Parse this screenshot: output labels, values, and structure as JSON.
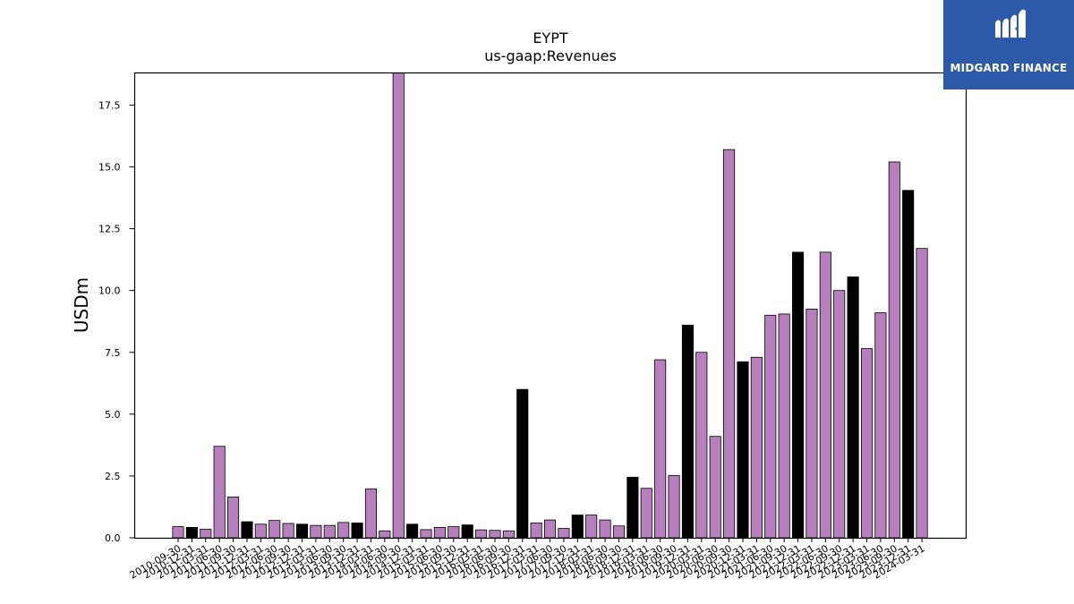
{
  "chart_data": {
    "type": "bar",
    "title": "EYPT",
    "subtitle": "us-gaap:Revenues",
    "xlabel": "",
    "ylabel": "USDm",
    "ylim": [
      0,
      18.8
    ],
    "yticks": [
      "0.0",
      "2.5",
      "5.0",
      "7.5",
      "10.0",
      "12.5",
      "15.0",
      "17.5"
    ],
    "colors": {
      "quarter": "#b77fbd",
      "annual": "#000000",
      "edge": "#000000"
    },
    "categories": [
      "2010-09-30",
      "2010-12-31",
      "2011-03-31",
      "2011-06-30",
      "2011-09-30",
      "2011-12-31",
      "2012-03-31",
      "2012-06-30",
      "2012-09-30",
      "2012-12-31",
      "2013-03-31",
      "2013-06-30",
      "2013-09-30",
      "2013-12-31",
      "2014-03-31",
      "2014-06-30",
      "2014-09-30",
      "2014-12-31",
      "2015-03-31",
      "2015-06-30",
      "2015-09-30",
      "2015-12-31",
      "2016-03-31",
      "2016-06-30",
      "2016-09-30",
      "2016-12-31",
      "2017-03-31",
      "2017-06-30",
      "2017-09-30",
      "2017-12-31",
      "2018-03-31",
      "2018-06-30",
      "2018-09-30",
      "2018-12-31",
      "2019-03-31",
      "2019-06-30",
      "2019-09-30",
      "2019-12-31",
      "2020-03-31",
      "2020-06-30",
      "2020-09-30",
      "2020-12-31",
      "2021-03-31",
      "2021-06-30",
      "2021-09-30",
      "2021-12-31",
      "2022-03-31",
      "2022-06-30",
      "2022-09-30",
      "2022-12-31",
      "2023-03-31",
      "2023-06-30",
      "2023-09-30",
      "2023-12-31",
      "2024-03-31"
    ],
    "values": [
      0.45,
      0.42,
      0.35,
      3.7,
      1.65,
      0.65,
      0.55,
      0.7,
      0.58,
      0.55,
      0.5,
      0.5,
      0.62,
      0.6,
      1.98,
      0.28,
      18.8,
      0.55,
      0.33,
      0.42,
      0.45,
      0.52,
      0.32,
      0.3,
      0.28,
      6.0,
      0.6,
      0.72,
      0.38,
      0.92,
      0.92,
      0.72,
      0.48,
      2.45,
      2.0,
      7.2,
      2.52,
      8.6,
      7.5,
      4.1,
      15.7,
      7.12,
      7.3,
      9.0,
      9.05,
      11.55,
      9.25,
      11.55,
      10.0,
      10.55,
      7.65,
      9.1,
      15.2,
      14.05,
      11.7
    ],
    "annual_flags": [
      false,
      true,
      false,
      false,
      false,
      true,
      false,
      false,
      false,
      true,
      false,
      false,
      false,
      true,
      false,
      false,
      false,
      true,
      false,
      false,
      false,
      true,
      false,
      false,
      false,
      true,
      false,
      false,
      false,
      true,
      false,
      false,
      false,
      true,
      false,
      false,
      false,
      true,
      false,
      false,
      false,
      true,
      false,
      false,
      false,
      true,
      false,
      false,
      false,
      true,
      false,
      false,
      false,
      true,
      false
    ]
  },
  "logo": {
    "text": "MIDGARD FINANCE",
    "bg_color": "#2c5aa8"
  }
}
